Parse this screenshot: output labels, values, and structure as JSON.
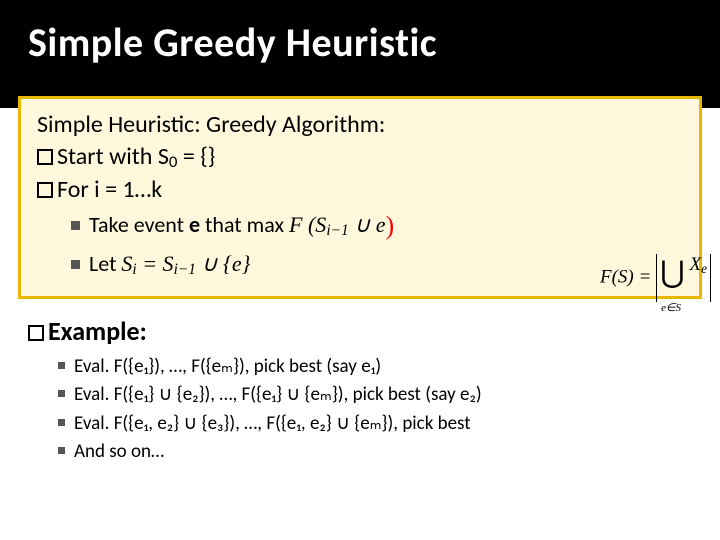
{
  "title": "Simple Greedy Heuristic",
  "box": {
    "line1": "Simple Heuristic: Greedy Algorithm:",
    "line2_pre": "Start with S",
    "line2_sub": "0",
    "line2_post": " = {}",
    "line3_pre": "For i = 1…k",
    "sub1_pre": "Take event ",
    "sub1_bold": "e",
    "sub1_post": " that max ",
    "sub1_math": "F (S",
    "sub1_math_sub": "i−1",
    "sub1_math_mid": " ∪ e",
    "sub2_pre": "Let ",
    "sub2_math": "S",
    "sub2_math_sub1": "i",
    "sub2_math_mid": " = S",
    "sub2_math_sub2": "i−1",
    "sub2_math_end": " ∪ {e}"
  },
  "example": {
    "head": "Example:",
    "items": [
      "Eval. F({e₁}), …, F({eₘ}), pick best (say e₁)",
      "Eval. F({e₁} ∪ {e₂}), …, F({e₁} ∪ {eₘ}), pick best (say e₂)",
      "Eval. F({e₁, e₂} ∪ {e₃}), …, F({e₁, e₂} ∪ {eₘ}), pick best",
      "And so on…"
    ]
  },
  "formula": {
    "lhs": "F(S) = ",
    "union": "⋃",
    "union_sub": "e∈S",
    "xe": "X",
    "xe_sub": "e"
  },
  "colors": {
    "title_bg": "#000000",
    "title_fg": "#ffffff",
    "box_border": "#e6b800",
    "box_bg": "#fff8dc",
    "paren": "#ff0000"
  }
}
